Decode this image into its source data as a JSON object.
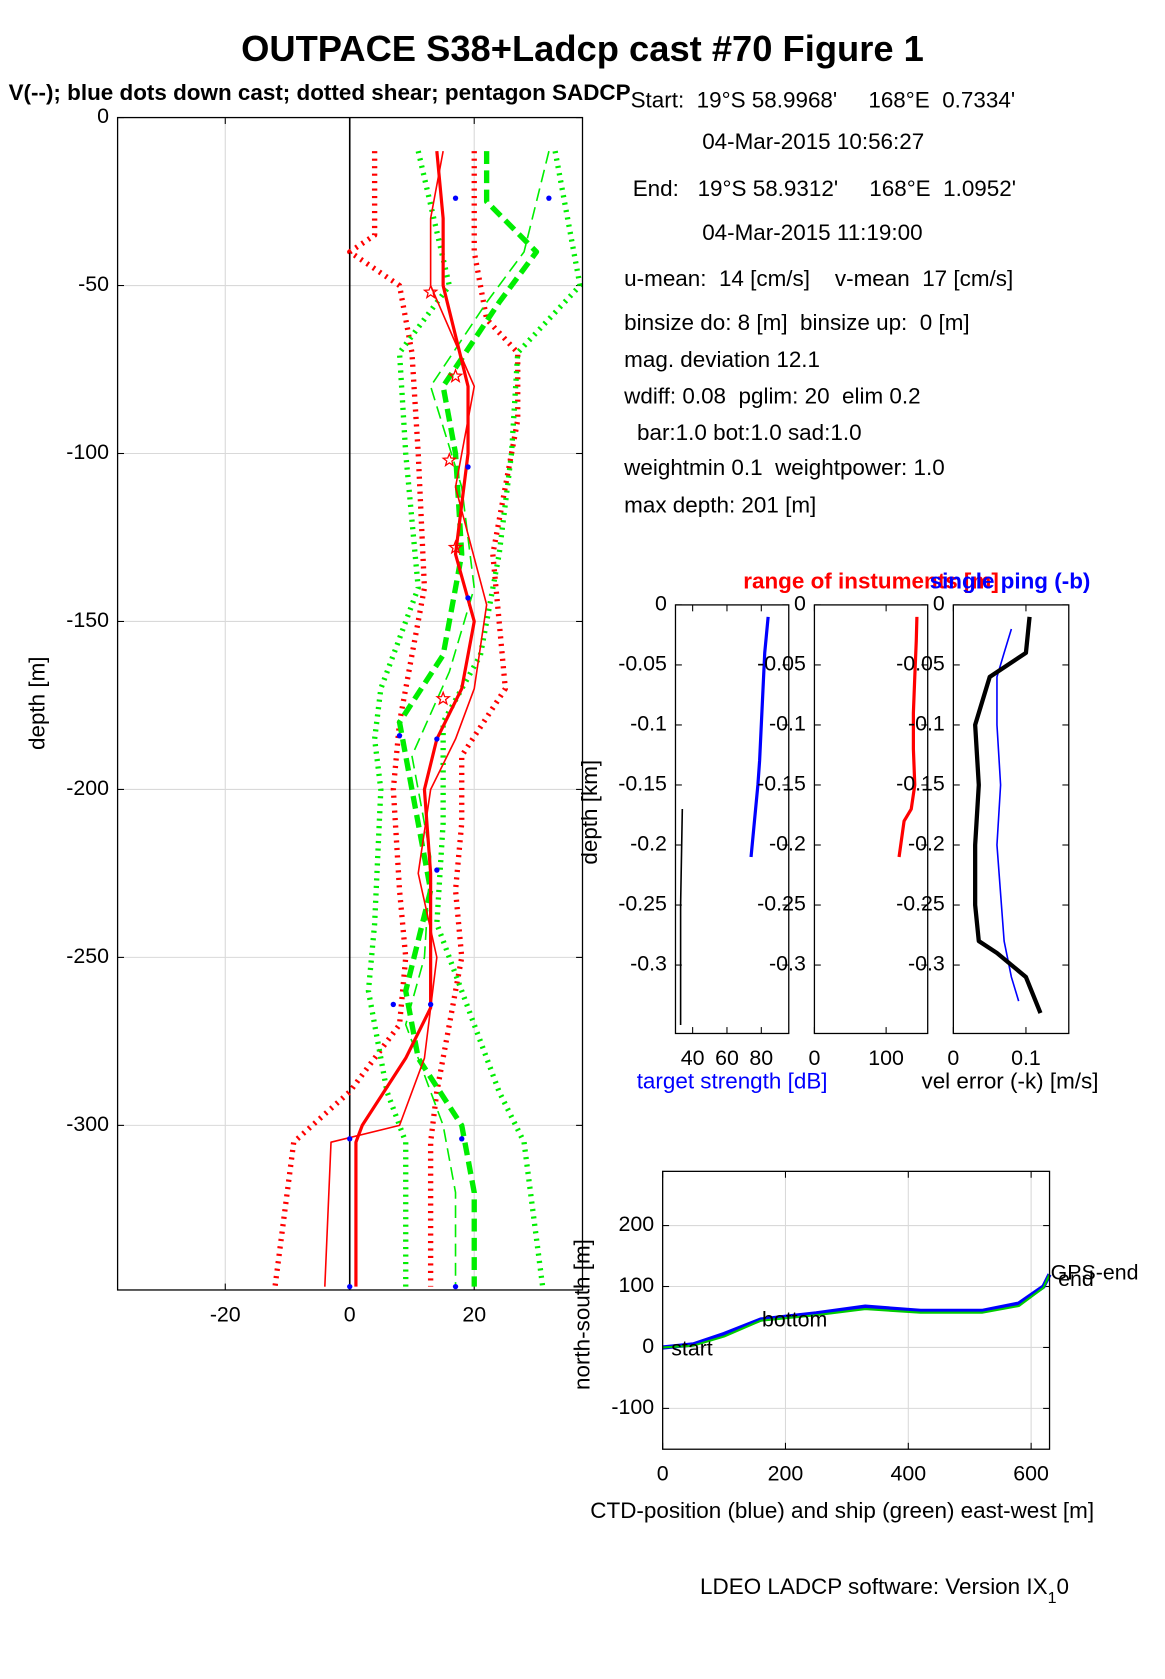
{
  "title": "OUTPACE S38+Ladcp cast #70  Figure 1",
  "subtitle": "V(--); blue dots down cast; dotted shear; pentagon SADCP",
  "info": [
    "Start:  19°S 58.9968'     168°E  0.7334'",
    "04-Mar-2015 10:56:27",
    "End:   19°S 58.9312'     168°E  1.0952'",
    "04-Mar-2015 11:19:00",
    "u-mean:  14 [cm/s]    v-mean  17 [cm/s]",
    "binsize do: 8 [m]  binsize up:  0 [m]",
    "mag. deviation 12.1",
    "wdiff: 0.08  pglim: 20  elim 0.2",
    "bar:1.0 bot:1.0 sad:1.0",
    "weightmin 0.1  weightpower: 1.0",
    "max depth: 201 [m]"
  ],
  "footer": "LDEO LADCP software: Version IX",
  "footer_sub": "1",
  "footer_end": "0",
  "chart_data": [
    {
      "type": "line",
      "ylabel": "depth [m]",
      "xlim": [
        -37.3,
        37.4
      ],
      "ylim": [
        -349,
        0
      ],
      "xticks": [
        -20,
        0,
        20
      ],
      "yticks": [
        0,
        -50,
        -100,
        -150,
        -200,
        -250,
        -300
      ],
      "grid": true,
      "zeroline": true,
      "series": [
        {
          "color": "#ff0000",
          "dash": "dot",
          "width": 5,
          "x": [
            20,
            20,
            22,
            27,
            27,
            23,
            24,
            25,
            18,
            18,
            17,
            18,
            16,
            14,
            13,
            13
          ],
          "values": [
            -10,
            -40,
            -60,
            -70,
            -90,
            -130,
            -150,
            -170,
            -190,
            -210,
            -230,
            -250,
            -270,
            -290,
            -305,
            -348
          ]
        },
        {
          "color": "#ff0000",
          "dash": "dot",
          "width": 5,
          "x": [
            4,
            4,
            0,
            8,
            10,
            11,
            12,
            10,
            8,
            7,
            8,
            9,
            8,
            0,
            -9,
            -12
          ],
          "values": [
            -10,
            -35,
            -40,
            -50,
            -70,
            -100,
            -140,
            -160,
            -180,
            -200,
            -230,
            -250,
            -270,
            -290,
            -305,
            -348
          ]
        },
        {
          "color": "#00ee00",
          "dash": "dot",
          "width": 5,
          "x": [
            33,
            37,
            27,
            26,
            24,
            21,
            15,
            15,
            14,
            18,
            24,
            28,
            31
          ],
          "values": [
            -10,
            -50,
            -70,
            -100,
            -130,
            -160,
            -180,
            -210,
            -240,
            -260,
            -290,
            -305,
            -348
          ]
        },
        {
          "color": "#00ee00",
          "dash": "dot",
          "width": 5,
          "x": [
            11,
            16,
            8,
            9,
            11,
            5,
            4,
            5,
            4,
            3,
            6,
            9,
            9
          ],
          "values": [
            -10,
            -50,
            -70,
            -100,
            -140,
            -170,
            -185,
            -200,
            -240,
            -260,
            -290,
            -305,
            -348
          ]
        },
        {
          "color": "#00ee00",
          "dash": "dash",
          "width": 5,
          "x": [
            22,
            22,
            30,
            24,
            15,
            17,
            18,
            15,
            8,
            10,
            13,
            9,
            11,
            18,
            20,
            20
          ],
          "values": [
            -10,
            -25,
            -40,
            -55,
            -80,
            -100,
            -130,
            -160,
            -180,
            -200,
            -230,
            -260,
            -280,
            -300,
            -320,
            -348
          ]
        },
        {
          "color": "#00ee00",
          "dash": "dash",
          "width": 1.5,
          "x": [
            32,
            28,
            22,
            13,
            18,
            20,
            16,
            10,
            13,
            12,
            9,
            15,
            17,
            17
          ],
          "values": [
            -10,
            -40,
            -55,
            -80,
            -110,
            -140,
            -165,
            -190,
            -220,
            -250,
            -270,
            -300,
            -320,
            -348
          ]
        },
        {
          "color": "#ff0000",
          "dash": "solid",
          "width": 1.5,
          "x": [
            15,
            13,
            13,
            20,
            17,
            22,
            20,
            17,
            13,
            11,
            14,
            13,
            12,
            8,
            -3,
            -4
          ],
          "values": [
            -10,
            -30,
            -50,
            -80,
            -110,
            -145,
            -170,
            -185,
            -200,
            -225,
            -250,
            -265,
            -280,
            -300,
            -305,
            -348
          ]
        },
        {
          "color": "#ff0000",
          "dash": "solid",
          "width": 3,
          "x": [
            14,
            15,
            15,
            19,
            19,
            17,
            20,
            18,
            14,
            12,
            13,
            13,
            13,
            9,
            2,
            1,
            1
          ],
          "values": [
            -10,
            -30,
            -50,
            -80,
            -100,
            -130,
            -150,
            -170,
            -185,
            -200,
            -225,
            -250,
            -265,
            -280,
            -300,
            -305,
            -348
          ]
        },
        {
          "color": "#0000ff",
          "marker": "dot",
          "x": [
            17,
            32,
            19,
            19,
            8,
            14,
            14,
            7,
            13,
            0,
            18,
            0,
            17
          ],
          "values": [
            -24,
            -24,
            -104,
            -143,
            -184,
            -185,
            -224,
            -264,
            -264,
            -304,
            -304,
            -348,
            -348
          ]
        },
        {
          "color": "#ff0000",
          "marker": "star",
          "x": [
            13,
            17,
            16,
            17,
            15
          ],
          "values": [
            -52,
            -77,
            -102,
            -128,
            -173
          ]
        }
      ]
    },
    {
      "type": "line",
      "ylabel": "depth [km]",
      "xlabel": "target strength [dB]",
      "xlabel_color": "#0000ff",
      "xlim": [
        30,
        96
      ],
      "ylim": [
        -0.357,
        0
      ],
      "xticks": [
        40,
        60,
        80
      ],
      "yticks": [
        0,
        -0.05,
        -0.1,
        -0.15,
        -0.2,
        -0.25,
        -0.3
      ],
      "grid": false,
      "series": [
        {
          "color": "#0000ff",
          "dash": "solid",
          "width": 3,
          "x": [
            84,
            82,
            81,
            80,
            79,
            78,
            76,
            74
          ],
          "values": [
            -0.01,
            -0.04,
            -0.07,
            -0.1,
            -0.13,
            -0.15,
            -0.18,
            -0.21
          ]
        },
        {
          "color": "#000000",
          "dash": "solid",
          "width": 1.5,
          "x": [
            34,
            33,
            33
          ],
          "values": [
            -0.17,
            -0.25,
            -0.35
          ]
        }
      ]
    },
    {
      "type": "line",
      "title": "range of instuments [m]",
      "title_color": "#ff0000",
      "xlim": [
        0,
        158
      ],
      "ylim": [
        -0.357,
        0
      ],
      "xticks": [
        0,
        100
      ],
      "yticks": [
        0,
        -0.05,
        -0.1,
        -0.15,
        -0.2,
        -0.25,
        -0.3
      ],
      "grid": false,
      "series": [
        {
          "color": "#ff0000",
          "dash": "solid",
          "width": 3,
          "x": [
            143,
            142,
            140,
            138,
            138,
            140,
            135,
            125,
            118
          ],
          "values": [
            -0.01,
            -0.03,
            -0.06,
            -0.09,
            -0.12,
            -0.15,
            -0.17,
            -0.18,
            -0.21
          ]
        }
      ]
    },
    {
      "type": "line",
      "title": "single ping (-b)",
      "title_color": "#0000ff",
      "xlabel": "vel error (-k) [m/s]",
      "xlabel_color": "#000000",
      "xlim": [
        0,
        0.159
      ],
      "ylim": [
        -0.357,
        0
      ],
      "xticks": [
        0,
        0.1
      ],
      "yticks": [
        0,
        -0.05,
        -0.1,
        -0.15,
        -0.2,
        -0.25,
        -0.3
      ],
      "grid": false,
      "series": [
        {
          "color": "#0000ff",
          "dash": "solid",
          "width": 1.5,
          "x": [
            0.08,
            0.07,
            0.06,
            0.06,
            0.065,
            0.06,
            0.07,
            0.08,
            0.09
          ],
          "values": [
            -0.02,
            -0.04,
            -0.06,
            -0.1,
            -0.15,
            -0.2,
            -0.28,
            -0.31,
            -0.33
          ]
        },
        {
          "color": "#000000",
          "dash": "solid",
          "width": 4,
          "x": [
            0.105,
            0.1,
            0.05,
            0.03,
            0.035,
            0.03,
            0.03,
            0.035,
            0.06,
            0.1,
            0.12
          ],
          "values": [
            -0.01,
            -0.04,
            -0.06,
            -0.1,
            -0.15,
            -0.2,
            -0.25,
            -0.28,
            -0.29,
            -0.31,
            -0.34
          ]
        }
      ]
    },
    {
      "type": "line",
      "xlabel": "CTD-position (blue) and ship (green) east-west [m]",
      "xlabel_color": "#000000",
      "ylabel": "north-south [m]",
      "xlim": [
        0,
        630
      ],
      "ylim": [
        -167,
        289
      ],
      "xticks": [
        0,
        200,
        400,
        600
      ],
      "yticks": [
        -100,
        0,
        100,
        200
      ],
      "grid": true,
      "annotations": [
        "start",
        "bottom",
        "end",
        "GPS-end"
      ],
      "series": [
        {
          "color": "#0000ff",
          "dash": "solid",
          "width": 4,
          "x": [
            0,
            50,
            100,
            160,
            250,
            330,
            420,
            520,
            580,
            620,
            630
          ],
          "values": [
            0,
            5,
            22,
            46,
            56,
            67,
            60,
            60,
            72,
            100,
            120
          ]
        },
        {
          "color": "#00cc00",
          "dash": "solid",
          "width": 2,
          "x": [
            0,
            50,
            100,
            160,
            250,
            330,
            420,
            520,
            580,
            620,
            630
          ],
          "values": [
            0,
            3,
            18,
            44,
            53,
            63,
            57,
            57,
            68,
            98,
            120
          ]
        }
      ]
    }
  ]
}
